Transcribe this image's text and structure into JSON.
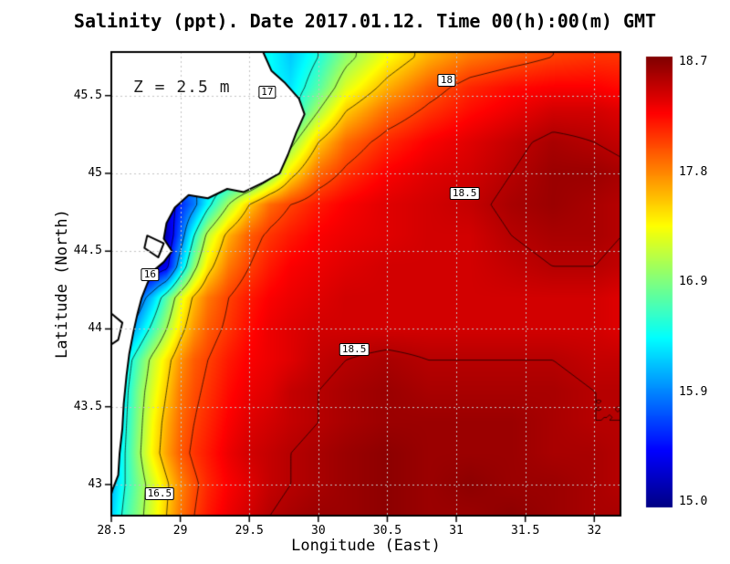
{
  "title": "Salinity (ppt). Date 2017.01.12. Time 00(h):00(m) GMT",
  "annotation": "Z = 2.5 m",
  "axes": {
    "xlabel": "Longitude (East)",
    "ylabel": "Latitude (North)",
    "x_ticks": [
      "28.5",
      "29",
      "29.5",
      "30",
      "30.5",
      "31",
      "31.5",
      "32"
    ],
    "y_ticks": [
      "43",
      "43.5",
      "44",
      "44.5",
      "45",
      "45.5"
    ],
    "xlim": [
      28.5,
      32.19
    ],
    "ylim": [
      42.8,
      45.78
    ]
  },
  "colorbar": {
    "min": 15.0,
    "max": 18.7,
    "ticks": [
      "18.7",
      "17.8",
      "16.9",
      "15.9",
      "15.0"
    ],
    "stops": [
      {
        "p": 0,
        "c": "#000083"
      },
      {
        "p": 0.125,
        "c": "#0000ff"
      },
      {
        "p": 0.375,
        "c": "#00ffff"
      },
      {
        "p": 0.625,
        "c": "#ffff00"
      },
      {
        "p": 0.875,
        "c": "#ff0000"
      },
      {
        "p": 1,
        "c": "#800000"
      }
    ]
  },
  "chart_data": {
    "type": "heatmap",
    "variable": "Salinity (ppt) at Z = 2.5 m",
    "lon": [
      28.5,
      28.6,
      28.7,
      28.8,
      28.9,
      29.0,
      29.1,
      29.2,
      29.35,
      29.5,
      29.65,
      29.8,
      30.0,
      30.2,
      30.5,
      30.8,
      31.1,
      31.4,
      31.7,
      32.0,
      32.2
    ],
    "lat": [
      42.8,
      43.0,
      43.2,
      43.4,
      43.6,
      43.8,
      44.0,
      44.2,
      44.4,
      44.6,
      44.8,
      45.0,
      45.2,
      45.4,
      45.55,
      45.75
    ],
    "values": [
      [
        16.2,
        16.6,
        16.9,
        17.2,
        17.5,
        17.8,
        18.0,
        18.15,
        18.3,
        18.4,
        18.5,
        18.55,
        18.6,
        18.6,
        18.65,
        18.6,
        18.6,
        18.65,
        18.6,
        18.55,
        18.55
      ],
      [
        16.1,
        16.5,
        16.85,
        17.15,
        17.45,
        17.75,
        17.95,
        18.1,
        18.25,
        18.35,
        18.45,
        18.5,
        18.55,
        18.6,
        18.65,
        18.6,
        18.65,
        18.6,
        18.6,
        18.55,
        18.5
      ],
      [
        16.1,
        16.5,
        16.95,
        17.35,
        17.65,
        17.9,
        18.05,
        18.15,
        18.3,
        18.4,
        18.45,
        18.5,
        18.55,
        18.6,
        18.65,
        18.6,
        18.6,
        18.6,
        18.55,
        18.55,
        18.5
      ],
      [
        16.0,
        16.45,
        16.9,
        17.3,
        17.6,
        17.85,
        18.0,
        18.1,
        18.25,
        18.35,
        18.4,
        18.45,
        18.5,
        18.55,
        18.6,
        18.6,
        18.6,
        18.6,
        18.55,
        18.5,
        18.5
      ],
      [
        16.0,
        16.4,
        16.85,
        17.2,
        17.5,
        17.8,
        17.95,
        18.05,
        18.2,
        18.3,
        18.35,
        18.45,
        18.5,
        18.55,
        18.6,
        18.55,
        18.55,
        18.55,
        18.55,
        18.5,
        18.5
      ],
      [
        15.9,
        16.3,
        16.7,
        17.1,
        17.4,
        17.7,
        17.9,
        18.0,
        18.15,
        18.25,
        18.3,
        18.35,
        18.45,
        18.5,
        18.55,
        18.5,
        18.5,
        18.5,
        18.5,
        18.45,
        18.45
      ],
      [
        15.7,
        15.9,
        16.2,
        16.6,
        17.0,
        17.4,
        17.7,
        17.9,
        18.05,
        18.2,
        18.3,
        18.35,
        18.4,
        18.4,
        18.4,
        18.4,
        18.4,
        18.4,
        18.4,
        18.4,
        18.35
      ],
      [
        15.4,
        15.5,
        15.8,
        16.2,
        16.7,
        17.2,
        17.55,
        17.8,
        18.0,
        18.15,
        18.25,
        18.3,
        18.35,
        18.4,
        18.4,
        18.4,
        18.4,
        18.4,
        18.4,
        18.4,
        18.35
      ],
      [
        15.1,
        15.1,
        15.1,
        15.2,
        15.4,
        16.2,
        16.9,
        17.4,
        17.8,
        18.0,
        18.15,
        18.25,
        18.3,
        18.35,
        18.4,
        18.4,
        18.4,
        18.45,
        18.5,
        18.5,
        18.45
      ],
      [
        15.0,
        15.0,
        15.0,
        15.0,
        15.2,
        15.8,
        16.5,
        17.1,
        17.6,
        17.9,
        18.05,
        18.15,
        18.25,
        18.3,
        18.35,
        18.4,
        18.4,
        18.5,
        18.55,
        18.55,
        18.5
      ],
      [
        15.2,
        15.2,
        15.2,
        15.2,
        15.3,
        15.6,
        15.9,
        16.4,
        17.0,
        17.5,
        17.85,
        18.0,
        18.15,
        18.25,
        18.35,
        18.4,
        18.45,
        18.55,
        18.6,
        18.55,
        18.5
      ],
      [
        15.5,
        15.5,
        15.5,
        15.5,
        15.6,
        15.8,
        16.0,
        16.1,
        16.2,
        16.3,
        16.8,
        17.4,
        17.85,
        18.05,
        18.25,
        18.35,
        18.4,
        18.5,
        18.6,
        18.6,
        18.55
      ],
      [
        15.8,
        15.8,
        15.8,
        15.8,
        15.9,
        16.0,
        16.1,
        16.2,
        16.3,
        16.4,
        16.5,
        16.9,
        17.5,
        17.85,
        18.1,
        18.25,
        18.35,
        18.45,
        18.55,
        18.5,
        18.45
      ],
      [
        16.0,
        16.0,
        16.0,
        16.0,
        16.1,
        16.2,
        16.3,
        16.4,
        16.4,
        16.5,
        16.5,
        16.4,
        17.0,
        17.5,
        17.85,
        18.05,
        18.2,
        18.3,
        18.4,
        18.4,
        18.35
      ],
      [
        16.2,
        16.2,
        16.2,
        16.2,
        16.3,
        16.3,
        16.4,
        16.4,
        16.5,
        16.5,
        16.4,
        16.3,
        16.7,
        17.2,
        17.6,
        17.9,
        18.1,
        18.2,
        18.25,
        18.25,
        18.2
      ],
      [
        16.0,
        16.0,
        16.0,
        16.0,
        16.1,
        16.2,
        16.3,
        16.4,
        16.2,
        16.3,
        16.4,
        16.2,
        16.5,
        16.9,
        17.3,
        17.6,
        17.8,
        17.9,
        18.0,
        18.05,
        18.05
      ]
    ],
    "contour_levels": [
      15.5,
      16,
      16.5,
      17,
      17.5,
      18,
      18.5
    ],
    "contour_labels": [
      {
        "text": "17",
        "lon": 29.63,
        "lat": 45.52
      },
      {
        "text": "18",
        "lon": 30.93,
        "lat": 45.6
      },
      {
        "text": "18.5",
        "lon": 31.06,
        "lat": 44.87
      },
      {
        "text": "18.5",
        "lon": 30.26,
        "lat": 43.87
      },
      {
        "text": "16",
        "lon": 28.78,
        "lat": 44.35
      },
      {
        "text": "16.5",
        "lon": 28.85,
        "lat": 42.94
      }
    ],
    "land_polygons": [
      [
        [
          28.5,
          45.78
        ],
        [
          29.6,
          45.78
        ],
        [
          29.66,
          45.66
        ],
        [
          29.76,
          45.58
        ],
        [
          29.86,
          45.48
        ],
        [
          29.9,
          45.38
        ],
        [
          29.84,
          45.26
        ],
        [
          29.78,
          45.12
        ],
        [
          29.72,
          45.0
        ],
        [
          29.6,
          44.94
        ],
        [
          29.46,
          44.88
        ],
        [
          29.34,
          44.9
        ],
        [
          29.2,
          44.84
        ],
        [
          29.06,
          44.86
        ],
        [
          28.96,
          44.78
        ],
        [
          28.9,
          44.68
        ],
        [
          28.88,
          44.58
        ],
        [
          28.94,
          44.5
        ],
        [
          28.88,
          44.43
        ],
        [
          28.8,
          44.37
        ],
        [
          28.76,
          44.29
        ],
        [
          28.72,
          44.2
        ],
        [
          28.69,
          44.1
        ],
        [
          28.66,
          43.98
        ],
        [
          28.63,
          43.84
        ],
        [
          28.61,
          43.7
        ],
        [
          28.59,
          43.52
        ],
        [
          28.58,
          43.36
        ],
        [
          28.56,
          43.2
        ],
        [
          28.55,
          43.06
        ],
        [
          28.51,
          42.97
        ],
        [
          28.5,
          42.94
        ]
      ],
      [
        [
          28.5,
          44.1
        ],
        [
          28.58,
          44.04
        ],
        [
          28.55,
          43.93
        ],
        [
          28.5,
          43.9
        ]
      ],
      [
        [
          28.76,
          44.6
        ],
        [
          28.88,
          44.55
        ],
        [
          28.84,
          44.46
        ],
        [
          28.74,
          44.52
        ]
      ]
    ]
  }
}
